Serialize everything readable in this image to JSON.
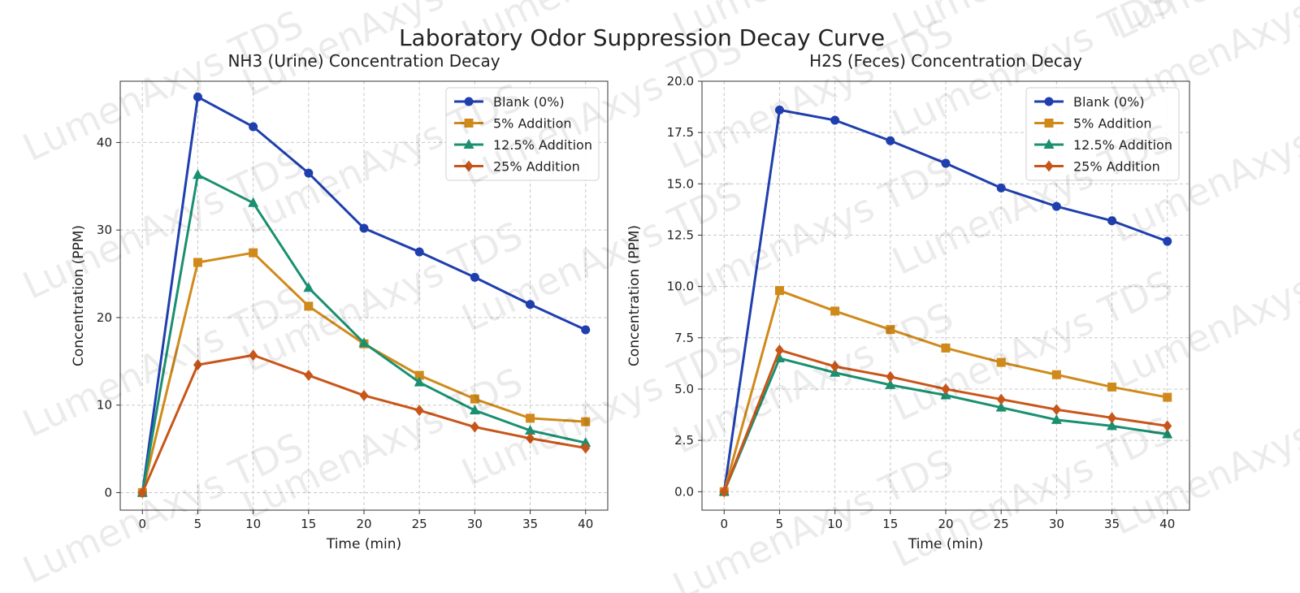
{
  "title": "Laboratory Odor Suppression Decay Curve",
  "watermark": "LumenAxys TDS",
  "colors": {
    "blank": "#1f3fae",
    "five": "#d08a1b",
    "twelve": "#1a9070",
    "twentyfive": "#c8561a"
  },
  "chart_data": [
    {
      "type": "line",
      "title": "NH3 (Urine) Concentration Decay",
      "xlabel": "Time (min)",
      "ylabel": "Concentration (PPM)",
      "x": [
        0,
        5,
        10,
        15,
        20,
        25,
        30,
        35,
        40
      ],
      "xticks": [
        0,
        5,
        10,
        15,
        20,
        25,
        30,
        35,
        40
      ],
      "xlim": [
        -2,
        42
      ],
      "yticks": [
        0,
        10,
        20,
        30,
        40
      ],
      "ylim": [
        -2,
        47
      ],
      "grid": true,
      "legend_position": "top-right",
      "series": [
        {
          "name": "Blank (0%)",
          "marker": "circle",
          "color_key": "blank",
          "values": [
            0,
            45.2,
            41.8,
            36.5,
            30.2,
            27.5,
            24.6,
            21.5,
            18.6
          ]
        },
        {
          "name": "5% Addition",
          "marker": "square",
          "color_key": "five",
          "values": [
            0,
            26.3,
            27.4,
            21.3,
            17.0,
            13.4,
            10.7,
            8.5,
            8.1
          ]
        },
        {
          "name": "12.5% Addition",
          "marker": "triangle",
          "color_key": "twelve",
          "values": [
            0,
            36.3,
            33.1,
            23.4,
            17.1,
            12.6,
            9.4,
            7.1,
            5.7
          ]
        },
        {
          "name": "25% Addition",
          "marker": "diamond",
          "color_key": "twentyfive",
          "values": [
            0,
            14.6,
            15.7,
            13.4,
            11.1,
            9.4,
            7.5,
            6.2,
            5.1
          ]
        }
      ]
    },
    {
      "type": "line",
      "title": "H2S (Feces) Concentration Decay",
      "xlabel": "Time (min)",
      "ylabel": "Concentration (PPM)",
      "x": [
        0,
        5,
        10,
        15,
        20,
        25,
        30,
        35,
        40
      ],
      "xticks": [
        0,
        5,
        10,
        15,
        20,
        25,
        30,
        35,
        40
      ],
      "xlim": [
        -2,
        42
      ],
      "yticks": [
        0.0,
        2.5,
        5.0,
        7.5,
        10.0,
        12.5,
        15.0,
        17.5,
        20.0
      ],
      "ytick_labels": [
        "0.0",
        "2.5",
        "5.0",
        "7.5",
        "10.0",
        "12.5",
        "15.0",
        "17.5",
        "20.0"
      ],
      "ylim": [
        -0.9,
        20.0
      ],
      "grid": true,
      "legend_position": "top-right",
      "series": [
        {
          "name": "Blank (0%)",
          "marker": "circle",
          "color_key": "blank",
          "values": [
            0,
            18.6,
            18.1,
            17.1,
            16.0,
            14.8,
            13.9,
            13.2,
            12.2
          ]
        },
        {
          "name": "5% Addition",
          "marker": "square",
          "color_key": "five",
          "values": [
            0,
            9.8,
            8.8,
            7.9,
            7.0,
            6.3,
            5.7,
            5.1,
            4.6
          ]
        },
        {
          "name": "12.5% Addition",
          "marker": "triangle",
          "color_key": "twelve",
          "values": [
            0,
            6.5,
            5.8,
            5.2,
            4.7,
            4.1,
            3.5,
            3.2,
            2.8
          ]
        },
        {
          "name": "25% Addition",
          "marker": "diamond",
          "color_key": "twentyfive",
          "values": [
            0,
            6.9,
            6.1,
            5.6,
            5.0,
            4.5,
            4.0,
            3.6,
            3.2
          ]
        }
      ]
    }
  ]
}
